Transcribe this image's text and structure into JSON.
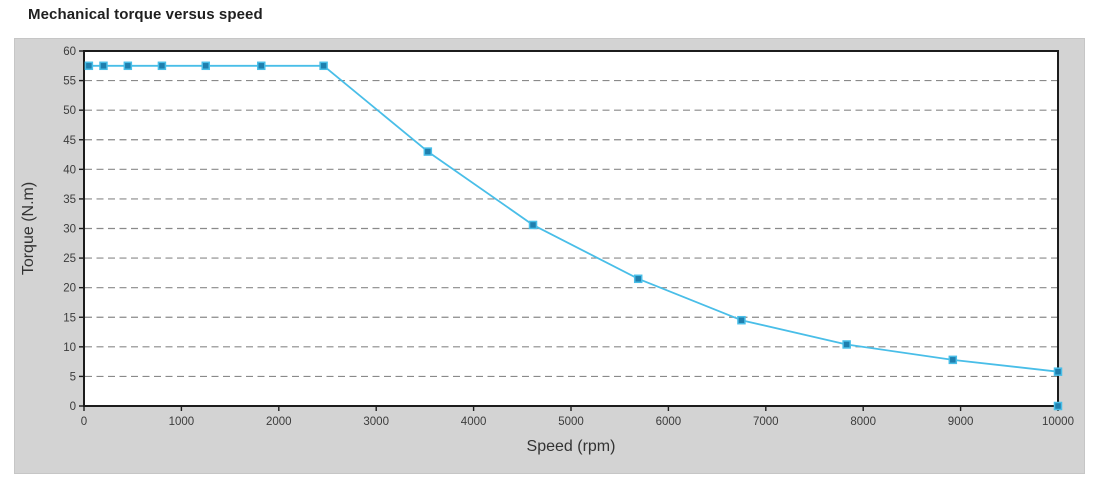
{
  "page": {
    "title": "Mechanical torque versus speed"
  },
  "chart_data": {
    "type": "line",
    "title": "Mechanical torque versus speed",
    "xlabel": "Speed (rpm)",
    "ylabel": "Torque (N.m)",
    "xlim": [
      0,
      10000
    ],
    "ylim": [
      0,
      60
    ],
    "x_ticks": [
      0,
      1000,
      2000,
      3000,
      4000,
      5000,
      6000,
      7000,
      8000,
      9000,
      10000
    ],
    "y_ticks": [
      0,
      5,
      10,
      15,
      20,
      25,
      30,
      35,
      40,
      45,
      50,
      55,
      60
    ],
    "grid": {
      "horizontal": true,
      "vertical": false,
      "style": "dashed"
    },
    "legend_position": "none",
    "marker": "filled-square",
    "points": [
      [
        50,
        57.5
      ],
      [
        200,
        57.5
      ],
      [
        450,
        57.5
      ],
      [
        800,
        57.5
      ],
      [
        1250,
        57.5
      ],
      [
        1820,
        57.5
      ],
      [
        2460,
        57.5
      ],
      [
        3530,
        43.0
      ],
      [
        4610,
        30.6
      ],
      [
        5690,
        21.5
      ],
      [
        6750,
        14.5
      ],
      [
        7830,
        10.4
      ],
      [
        8920,
        7.8
      ],
      [
        10000,
        5.8
      ],
      [
        10000,
        0
      ]
    ],
    "colors": {
      "line": "#49bee8",
      "marker_fill": "#1f7fae",
      "marker_border": "#49bee8",
      "grid": "#8a8a8a",
      "axis": "#1c1c1c",
      "plot_bg": "#ffffff",
      "panel_bg": "#d3d3d3",
      "tick_text": "#3c3c3c",
      "label_text": "#333333",
      "title_text": "#1f1f1f"
    }
  }
}
